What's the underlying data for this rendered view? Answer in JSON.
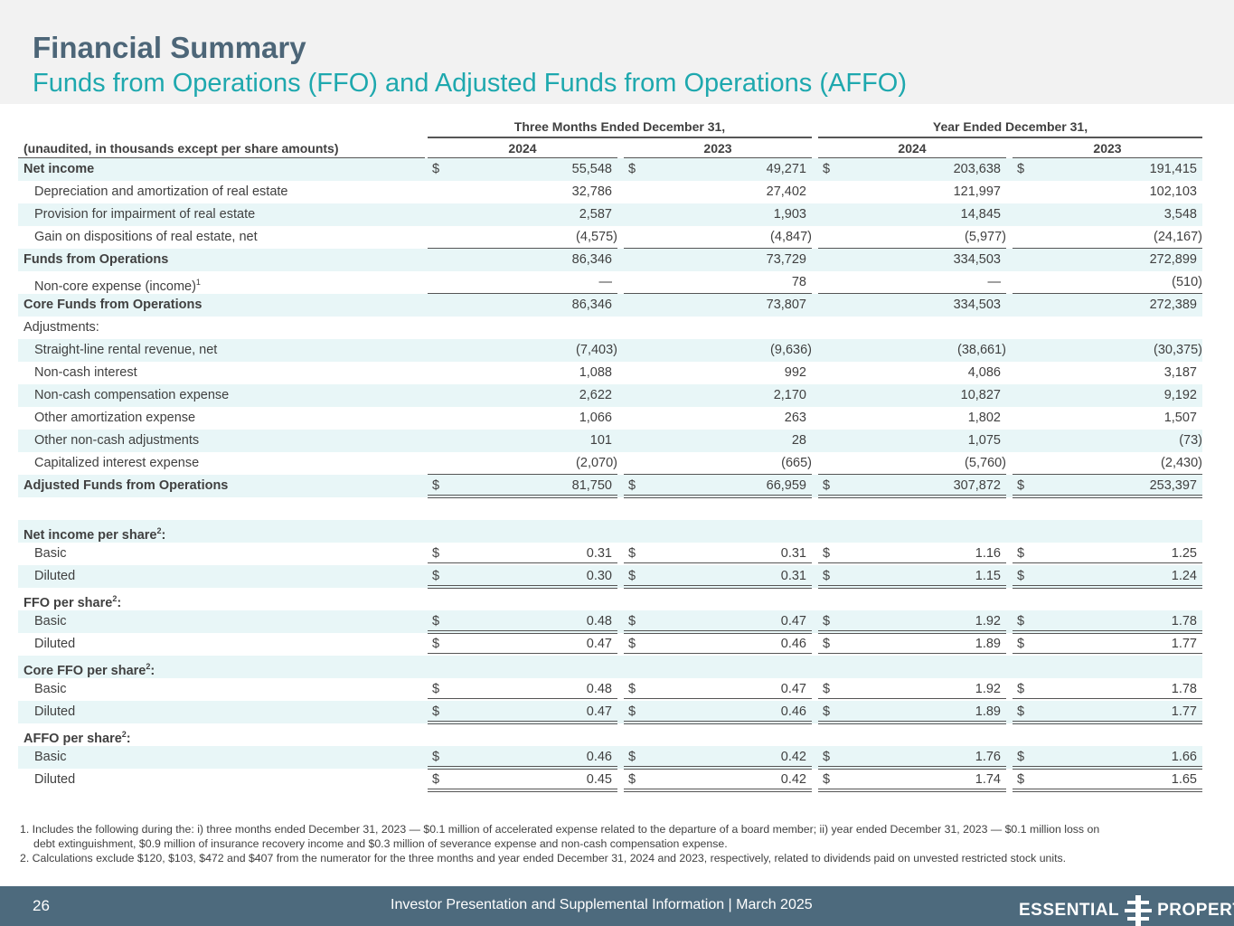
{
  "header": {
    "title": "Financial Summary",
    "subtitle": "Funds from Operations (FFO) and Adjusted Funds from Operations (AFFO)"
  },
  "table": {
    "label_header": "(unaudited, in thousands except per share amounts)",
    "groups": [
      "Three Months Ended December 31,",
      "Year Ended December 31,"
    ],
    "years": [
      "2024",
      "2023",
      "2024",
      "2023"
    ],
    "rows": [
      {
        "label": "Net income",
        "bold": true,
        "dollar": true,
        "values": [
          "55,548",
          "49,271",
          "203,638",
          "191,415"
        ]
      },
      {
        "label": "Depreciation and amortization of real estate",
        "indent": true,
        "values": [
          "32,786",
          "27,402",
          "121,997",
          "102,103"
        ]
      },
      {
        "label": "Provision for impairment of real estate",
        "indent": true,
        "values": [
          "2,587",
          "1,903",
          "14,845",
          "3,548"
        ]
      },
      {
        "label": "Gain on dispositions of real estate, net",
        "indent": true,
        "line": "single",
        "values": [
          "(4,575)",
          "(4,847)",
          "(5,977)",
          "(24,167)"
        ]
      },
      {
        "label": "Funds from Operations",
        "bold": true,
        "values": [
          "86,346",
          "73,729",
          "334,503",
          "272,899"
        ]
      },
      {
        "label": "Non-core expense (income)",
        "sup": "1",
        "indent": true,
        "line": "single",
        "values": [
          "—",
          "78",
          "—",
          "(510)"
        ]
      },
      {
        "label": "Core Funds from Operations",
        "bold": true,
        "values": [
          "86,346",
          "73,807",
          "334,503",
          "272,389"
        ]
      },
      {
        "label": "Adjustments:",
        "values": []
      },
      {
        "label": "Straight-line rental revenue, net",
        "indent": true,
        "values": [
          "(7,403)",
          "(9,636)",
          "(38,661)",
          "(30,375)"
        ]
      },
      {
        "label": "Non-cash interest",
        "indent": true,
        "values": [
          "1,088",
          "992",
          "4,086",
          "3,187"
        ]
      },
      {
        "label": "Non-cash compensation expense",
        "indent": true,
        "values": [
          "2,622",
          "2,170",
          "10,827",
          "9,192"
        ]
      },
      {
        "label": "Other amortization expense",
        "indent": true,
        "values": [
          "1,066",
          "263",
          "1,802",
          "1,507"
        ]
      },
      {
        "label": "Other non-cash adjustments",
        "indent": true,
        "values": [
          "101",
          "28",
          "1,075",
          "(73)"
        ]
      },
      {
        "label": "Capitalized interest expense",
        "indent": true,
        "line": "single",
        "values": [
          "(2,070)",
          "(665)",
          "(5,760)",
          "(2,430)"
        ]
      },
      {
        "label": "Adjusted Funds from Operations",
        "bold": true,
        "dollar": true,
        "line": "double",
        "values": [
          "81,750",
          "66,959",
          "307,872",
          "253,397"
        ]
      },
      {
        "label": "",
        "values": []
      },
      {
        "label": "Net income per share",
        "sup": "2",
        "suffix": ":",
        "bold": true,
        "values": []
      },
      {
        "label": "Basic",
        "indent": true,
        "dollar": true,
        "line": "double",
        "values": [
          "0.31",
          "0.31",
          "1.16",
          "1.25"
        ]
      },
      {
        "label": "Diluted",
        "indent": true,
        "dollar": true,
        "line": "double",
        "values": [
          "0.30",
          "0.31",
          "1.15",
          "1.24"
        ]
      },
      {
        "label": "FFO per share",
        "sup": "2",
        "suffix": ":",
        "bold": true,
        "values": []
      },
      {
        "label": "Basic",
        "indent": true,
        "dollar": true,
        "line": "double",
        "values": [
          "0.48",
          "0.47",
          "1.92",
          "1.78"
        ]
      },
      {
        "label": "Diluted",
        "indent": true,
        "dollar": true,
        "line": "double",
        "values": [
          "0.47",
          "0.46",
          "1.89",
          "1.77"
        ]
      },
      {
        "label": "Core FFO per share",
        "sup": "2",
        "suffix": ":",
        "bold": true,
        "values": []
      },
      {
        "label": "Basic",
        "indent": true,
        "dollar": true,
        "line": "double",
        "values": [
          "0.48",
          "0.47",
          "1.92",
          "1.78"
        ]
      },
      {
        "label": "Diluted",
        "indent": true,
        "dollar": true,
        "line": "double",
        "values": [
          "0.47",
          "0.46",
          "1.89",
          "1.77"
        ]
      },
      {
        "label": "AFFO per share",
        "sup": "2",
        "suffix": ":",
        "bold": true,
        "values": []
      },
      {
        "label": "Basic",
        "indent": true,
        "dollar": true,
        "line": "double",
        "values": [
          "0.46",
          "0.42",
          "1.76",
          "1.66"
        ]
      },
      {
        "label": "Diluted",
        "indent": true,
        "dollar": true,
        "line": "double",
        "values": [
          "0.45",
          "0.42",
          "1.74",
          "1.65"
        ]
      }
    ],
    "currency_symbol": "$"
  },
  "footnotes": [
    "1. Includes the following during the: i) three months ended December 31, 2023 — $0.1 million of accelerated expense related to the departure of a board member; ii) year ended December 31, 2023 — $0.1 million loss on",
    "    debt extinguishment, $0.9 million of insurance recovery income and $0.3 million of severance expense and non-cash compensation expense.",
    "2. Calculations exclude $120, $103, $472 and $407 from the numerator for the three months and year ended December 31, 2024 and 2023, respectively, related to dividends paid on unvested restricted stock units."
  ],
  "footer": {
    "page_number": "26",
    "text": "Investor Presentation and Supplemental Information |  March 2025",
    "logo_left": "ESSENTIAL",
    "logo_right": "PROPERTIES"
  },
  "colors": {
    "title": "#4d6678",
    "subtitle": "#1ea8ae",
    "row_shade": "#e8f6f7",
    "footer_bar": "#4d6a7d"
  }
}
